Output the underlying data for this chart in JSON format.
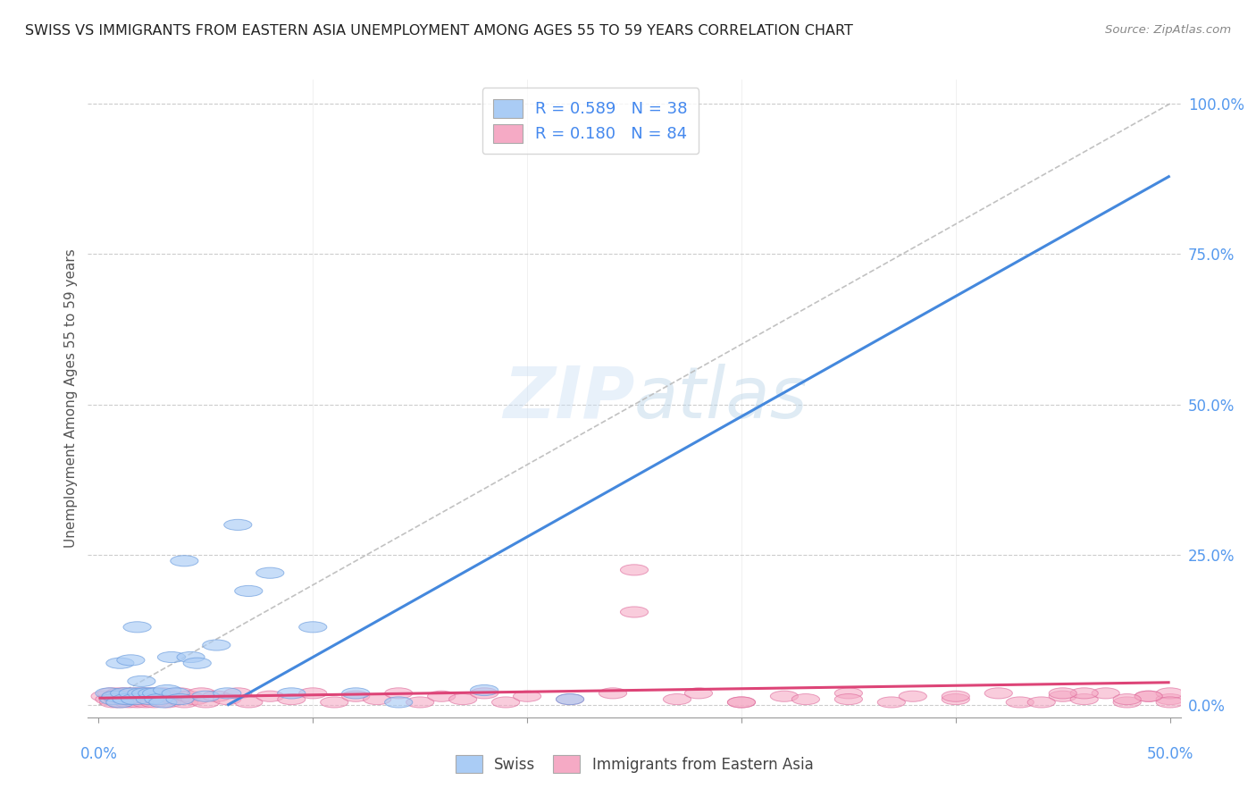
{
  "title": "SWISS VS IMMIGRANTS FROM EASTERN ASIA UNEMPLOYMENT AMONG AGES 55 TO 59 YEARS CORRELATION CHART",
  "source": "Source: ZipAtlas.com",
  "ylabel": "Unemployment Among Ages 55 to 59 years",
  "watermark": "ZIPatlas",
  "legend_swiss_R": "0.589",
  "legend_swiss_N": "38",
  "legend_imm_R": "0.180",
  "legend_imm_N": "84",
  "swiss_color": "#aaccf5",
  "swiss_edge_color": "#6699dd",
  "imm_color": "#f5aac5",
  "imm_edge_color": "#dd6699",
  "swiss_line_color": "#4488dd",
  "imm_line_color": "#dd4477",
  "diag_line_color": "#bbbbbb",
  "grid_color": "#cccccc",
  "background_color": "#ffffff",
  "xlim": [
    0.0,
    0.5
  ],
  "ylim": [
    0.0,
    1.0
  ],
  "ytick_vals": [
    0.0,
    0.25,
    0.5,
    0.75,
    1.0
  ],
  "ytick_labels": [
    "0.0%",
    "25.0%",
    "50.0%",
    "75.0%",
    "100.0%"
  ],
  "swiss_line_x0": 0.06,
  "swiss_line_y0": 0.0,
  "swiss_line_x1": 0.5,
  "swiss_line_y1": 0.88,
  "imm_line_x0": 0.0,
  "imm_line_y0": 0.012,
  "imm_line_x1": 0.5,
  "imm_line_y1": 0.038,
  "swiss_scatter_x": [
    0.005,
    0.007,
    0.008,
    0.01,
    0.01,
    0.012,
    0.013,
    0.015,
    0.016,
    0.017,
    0.018,
    0.02,
    0.02,
    0.022,
    0.024,
    0.025,
    0.027,
    0.028,
    0.03,
    0.032,
    0.034,
    0.036,
    0.038,
    0.04,
    0.043,
    0.046,
    0.05,
    0.055,
    0.06,
    0.065,
    0.07,
    0.08,
    0.09,
    0.1,
    0.12,
    0.14,
    0.18,
    0.22
  ],
  "swiss_scatter_y": [
    0.02,
    0.01,
    0.015,
    0.005,
    0.07,
    0.02,
    0.01,
    0.075,
    0.02,
    0.01,
    0.13,
    0.04,
    0.02,
    0.02,
    0.01,
    0.02,
    0.02,
    0.01,
    0.005,
    0.025,
    0.08,
    0.02,
    0.01,
    0.24,
    0.08,
    0.07,
    0.015,
    0.1,
    0.02,
    0.3,
    0.19,
    0.22,
    0.02,
    0.13,
    0.02,
    0.005,
    0.025,
    0.01
  ],
  "imm_scatter_x": [
    0.003,
    0.005,
    0.006,
    0.007,
    0.008,
    0.009,
    0.01,
    0.01,
    0.011,
    0.012,
    0.013,
    0.014,
    0.015,
    0.016,
    0.017,
    0.018,
    0.019,
    0.02,
    0.021,
    0.022,
    0.023,
    0.024,
    0.025,
    0.026,
    0.027,
    0.028,
    0.03,
    0.032,
    0.034,
    0.036,
    0.038,
    0.04,
    0.042,
    0.045,
    0.048,
    0.05,
    0.055,
    0.06,
    0.065,
    0.07,
    0.08,
    0.09,
    0.1,
    0.11,
    0.12,
    0.13,
    0.14,
    0.15,
    0.16,
    0.17,
    0.18,
    0.19,
    0.2,
    0.22,
    0.24,
    0.25,
    0.27,
    0.28,
    0.3,
    0.32,
    0.33,
    0.35,
    0.37,
    0.38,
    0.4,
    0.42,
    0.43,
    0.45,
    0.46,
    0.47,
    0.48,
    0.49,
    0.5,
    0.5,
    0.5,
    0.49,
    0.48,
    0.46,
    0.44,
    0.25,
    0.3,
    0.35,
    0.4,
    0.45
  ],
  "imm_scatter_y": [
    0.015,
    0.01,
    0.02,
    0.005,
    0.015,
    0.01,
    0.02,
    0.005,
    0.015,
    0.01,
    0.02,
    0.005,
    0.015,
    0.01,
    0.02,
    0.005,
    0.015,
    0.01,
    0.02,
    0.005,
    0.015,
    0.01,
    0.02,
    0.005,
    0.015,
    0.01,
    0.02,
    0.005,
    0.015,
    0.01,
    0.02,
    0.005,
    0.015,
    0.01,
    0.02,
    0.005,
    0.015,
    0.01,
    0.02,
    0.005,
    0.015,
    0.01,
    0.02,
    0.005,
    0.015,
    0.01,
    0.02,
    0.005,
    0.015,
    0.01,
    0.02,
    0.005,
    0.015,
    0.01,
    0.02,
    0.155,
    0.01,
    0.02,
    0.005,
    0.015,
    0.01,
    0.02,
    0.005,
    0.015,
    0.01,
    0.02,
    0.005,
    0.015,
    0.01,
    0.02,
    0.005,
    0.015,
    0.01,
    0.02,
    0.005,
    0.015,
    0.01,
    0.02,
    0.005,
    0.225,
    0.005,
    0.01,
    0.015,
    0.02
  ]
}
